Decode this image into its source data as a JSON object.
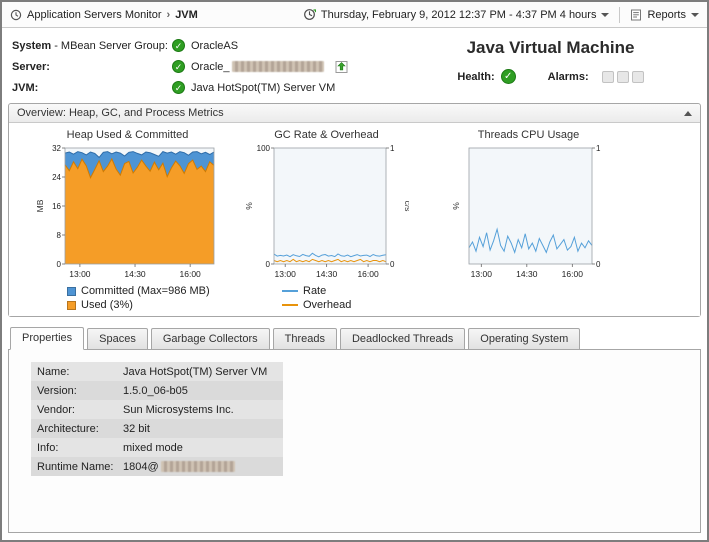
{
  "topbar": {
    "breadcrumb_root": "Application Servers Monitor",
    "breadcrumb_sep": "›",
    "breadcrumb_current": "JVM",
    "time_range": "Thursday, February 9, 2012 12:37 PM - 4:37 PM 4 hours",
    "reports_label": "Reports"
  },
  "header": {
    "rows": [
      {
        "label_strong": "System",
        "label_rest": " - MBean Server Group:",
        "value": "OracleAS"
      },
      {
        "label_strong": "Server:",
        "label_rest": "",
        "value": "Oracle_"
      },
      {
        "label_strong": "JVM:",
        "label_rest": "",
        "value": "Java HotSpot(TM) Server VM"
      }
    ],
    "title": "Java Virtual Machine",
    "health_label": "Health:",
    "alarms_label": "Alarms:"
  },
  "overview": {
    "title": "Overview: Heap, GC, and Process Metrics"
  },
  "colors": {
    "status_ok": "#2f9e23",
    "accent_blue": "#4e94d4",
    "accent_orange": "#f59d27"
  },
  "chart_data": [
    {
      "type": "area",
      "title": "Heap Used & Committed",
      "ylabel": "MB",
      "ylim": [
        0,
        32
      ],
      "yticks": [
        0,
        8,
        16,
        24,
        32
      ],
      "xtick_labels": [
        "13:00",
        "14:30",
        "16:00"
      ],
      "xtick_pos": [
        0.1,
        0.47,
        0.84
      ],
      "series": [
        {
          "name": "Committed (Max=986 MB)",
          "color": "#4e94d4",
          "stroke": "#2e6ca8",
          "fill": true,
          "values": [
            30.6,
            30.9,
            30.3,
            31.0,
            30.7,
            30.1,
            30.9,
            30.5,
            29.4,
            30.8,
            31.0,
            30.4,
            30.9,
            30.6,
            29.8,
            30.8,
            31.0,
            30.5,
            30.1,
            30.9,
            30.7,
            30.2,
            29.7,
            31.0,
            30.6,
            30.9,
            30.3,
            31.0,
            30.7,
            30.0,
            30.9,
            31.0,
            30.4,
            30.8,
            30.2,
            30.9
          ]
        },
        {
          "name": "Used (3%)",
          "color": "#f59d27",
          "stroke": "#d07b00",
          "fill": true,
          "values": [
            27.4,
            25.7,
            28.2,
            26.3,
            28.9,
            27.1,
            23.8,
            26.1,
            28.5,
            25.5,
            27.0,
            29.0,
            26.2,
            24.5,
            27.7,
            28.3,
            25.1,
            26.7,
            28.7,
            27.0,
            25.6,
            28.1,
            26.0,
            27.8,
            24.1,
            26.5,
            28.4,
            27.1,
            25.0,
            27.7,
            28.7,
            26.1,
            27.0,
            25.5,
            28.2,
            27.2
          ]
        }
      ],
      "legend": [
        {
          "label": "Committed (Max=986 MB)",
          "swatch": "square",
          "color": "#4e94d4"
        },
        {
          "label": "Used (3%)",
          "swatch": "square",
          "color": "#f59d27"
        }
      ]
    },
    {
      "type": "line",
      "title": "GC Rate & Overhead",
      "ylabel": "%",
      "y2label": "c/s",
      "ylim": [
        0,
        100
      ],
      "yticks": [
        0,
        100
      ],
      "y2lim": [
        0,
        1
      ],
      "y2ticks": [
        0,
        1
      ],
      "xtick_labels": [
        "13:00",
        "14:30",
        "16:00"
      ],
      "xtick_pos": [
        0.1,
        0.47,
        0.84
      ],
      "series": [
        {
          "name": "Rate",
          "color": "#55a0d9",
          "values": [
            8.5,
            6.8,
            7.4,
            6.9,
            7.8,
            6.3,
            8.0,
            7.1,
            6.5,
            8.3,
            7.2,
            6.6,
            9.2,
            7.4,
            6.2,
            7.7,
            8.2,
            6.8,
            7.3,
            6.4,
            8.6,
            7.1,
            6.7,
            7.8,
            6.3,
            7.2,
            8.1,
            6.9,
            7.4,
            7.7,
            6.5,
            8.2,
            7.1,
            6.8,
            7.5,
            7.9
          ]
        },
        {
          "name": "Overhead",
          "color": "#e8930c",
          "axis": "y2",
          "values": [
            0.03,
            0.02,
            0.03,
            0.02,
            0.03,
            0.02,
            0.04,
            0.02,
            0.03,
            0.02,
            0.03,
            0.02,
            0.04,
            0.03,
            0.02,
            0.03,
            0.02,
            0.03,
            0.02,
            0.03,
            0.04,
            0.02,
            0.03,
            0.02,
            0.03,
            0.02,
            0.03,
            0.04,
            0.02,
            0.03,
            0.02,
            0.03,
            0.03,
            0.02,
            0.03,
            0.02
          ]
        }
      ],
      "legend": [
        {
          "label": "Rate",
          "swatch": "line",
          "color": "#55a0d9"
        },
        {
          "label": "Overhead",
          "swatch": "line",
          "color": "#e8930c"
        }
      ]
    },
    {
      "type": "line",
      "title": "Threads CPU Usage",
      "ylabel": "%",
      "ylim": [
        0,
        100
      ],
      "yticks": [],
      "y2lim": [
        0,
        1
      ],
      "y2ticks": [
        0,
        1
      ],
      "xtick_labels": [
        "13:00",
        "14:30",
        "16:00"
      ],
      "xtick_pos": [
        0.1,
        0.47,
        0.84
      ],
      "series": [
        {
          "name": "CPU",
          "color": "#55a0d9",
          "values": [
            14,
            19,
            11,
            23,
            15,
            27,
            12,
            20,
            30,
            16,
            11,
            24,
            18,
            10,
            21,
            14,
            26,
            13,
            18,
            11,
            22,
            16,
            10,
            19,
            25,
            13,
            17,
            21,
            12,
            15,
            23,
            11,
            18,
            14,
            20,
            16
          ]
        }
      ],
      "legend": []
    }
  ],
  "tabs": [
    {
      "label": "Properties"
    },
    {
      "label": "Spaces"
    },
    {
      "label": "Garbage Collectors"
    },
    {
      "label": "Threads"
    },
    {
      "label": "Deadlocked Threads"
    },
    {
      "label": "Operating System"
    }
  ],
  "properties": {
    "rows": [
      {
        "label": "Name:",
        "value": "Java HotSpot(TM) Server VM"
      },
      {
        "label": "Version:",
        "value": "1.5.0_06-b05"
      },
      {
        "label": "Vendor:",
        "value": "Sun Microsystems Inc."
      },
      {
        "label": "Architecture:",
        "value": "32 bit"
      },
      {
        "label": "Info:",
        "value": "mixed mode"
      },
      {
        "label": "Runtime Name:",
        "value": "1804@"
      }
    ]
  }
}
